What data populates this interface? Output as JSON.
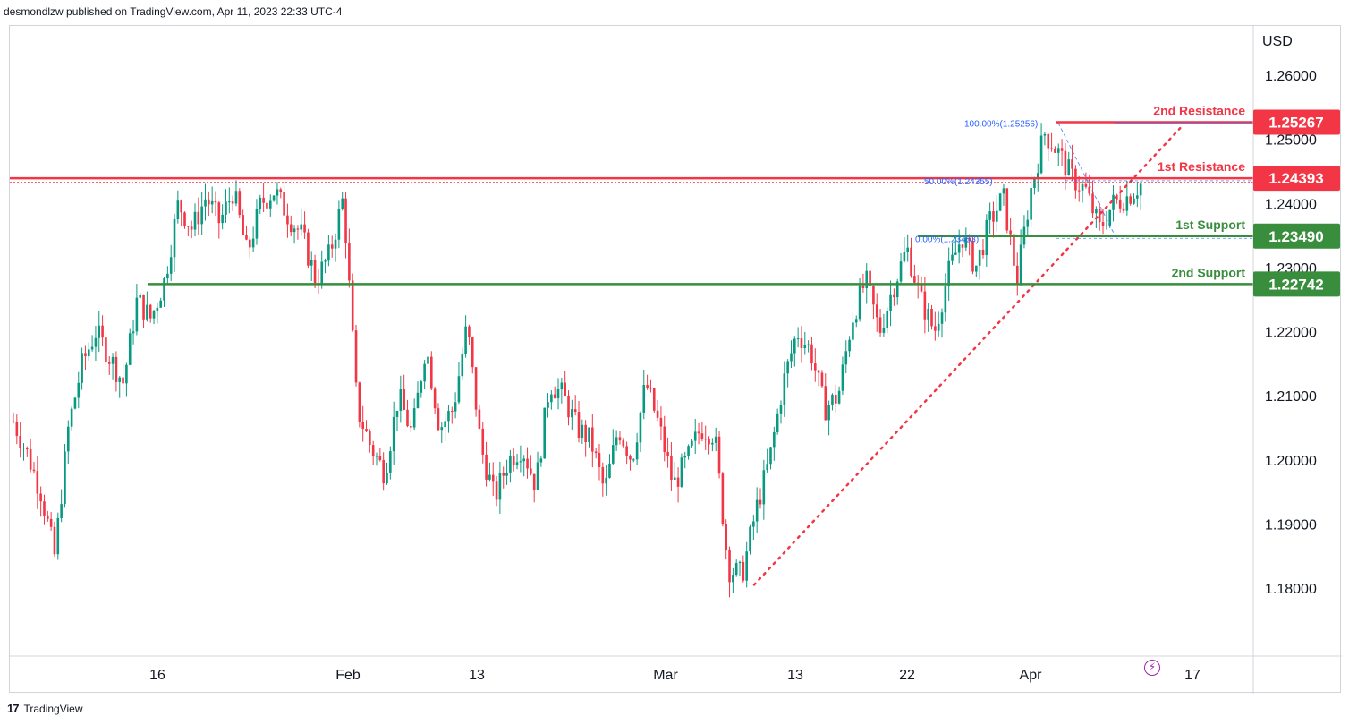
{
  "header": {
    "publish_text": "desmondlzw published on TradingView.com, Apr 11, 2023 22:33 UTC-4"
  },
  "footer": {
    "brand": "TradingView"
  },
  "colors": {
    "up": "#089981",
    "down": "#f23645",
    "resistance": "#f23645",
    "support": "#388e3c",
    "axis_text": "#131722",
    "fib": "#2962ff"
  },
  "chart_data": {
    "type": "candlestick",
    "currency": "USD",
    "ylim": [
      1.17,
      1.27
    ],
    "y_ticks": [
      "1.26000",
      "1.25000",
      "1.24000",
      "1.23000",
      "1.22000",
      "1.21000",
      "1.20000",
      "1.19000",
      "1.18000"
    ],
    "x_ticks": [
      "16",
      "Feb",
      "13",
      "Mar",
      "13",
      "22",
      "Apr",
      "17"
    ],
    "levels": [
      {
        "label": "2nd Resistance",
        "value": "1.25267",
        "type": "resistance"
      },
      {
        "label": "1st Resistance",
        "value": "1.24393",
        "type": "resistance"
      },
      {
        "label": "1st Support",
        "value": "1.23490",
        "type": "support"
      },
      {
        "label": "2nd Support",
        "value": "1.22742",
        "type": "support"
      }
    ],
    "fib_labels": [
      "100.00%(1.25256)",
      "50.00%(1.24355)",
      "0.00%(1.23453)"
    ],
    "trend_line": {
      "start_value": 1.1805,
      "end_value": 1.2523
    },
    "price_path": [
      1.206,
      1.201,
      1.195,
      1.185,
      1.205,
      1.215,
      1.22,
      1.216,
      1.212,
      1.225,
      1.222,
      1.228,
      1.24,
      1.236,
      1.241,
      1.237,
      1.242,
      1.232,
      1.24,
      1.242,
      1.238,
      1.235,
      1.228,
      1.232,
      1.241,
      1.208,
      1.202,
      1.198,
      1.21,
      1.204,
      1.218,
      1.205,
      1.208,
      1.221,
      1.202,
      1.194,
      1.2,
      1.202,
      1.196,
      1.212,
      1.21,
      1.205,
      1.203,
      1.195,
      1.205,
      1.2,
      1.212,
      1.205,
      1.196,
      1.2,
      1.205,
      1.204,
      1.183,
      1.182,
      1.192,
      1.2,
      1.212,
      1.22,
      1.217,
      1.208,
      1.21,
      1.222,
      1.228,
      1.22,
      1.227,
      1.233,
      1.225,
      1.22,
      1.229,
      1.235,
      1.23,
      1.237,
      1.241,
      1.228,
      1.242,
      1.251,
      1.248,
      1.244,
      1.242,
      1.236,
      1.24,
      1.241,
      1.243
    ]
  }
}
